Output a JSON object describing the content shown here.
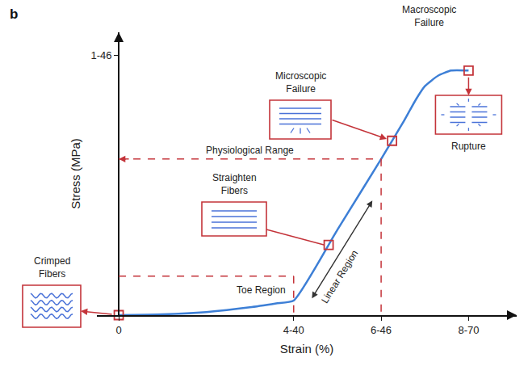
{
  "chart_data": {
    "type": "line",
    "panel_label": "b",
    "xlabel": "Strain (%)",
    "ylabel": "Stress (MPa)",
    "x": [
      0,
      1,
      2,
      3,
      3.6,
      4,
      5,
      6,
      6.25,
      6.5,
      6.8,
      7,
      7.3,
      7.6,
      8
    ],
    "values": [
      0,
      0.003,
      0.012,
      0.03,
      0.045,
      0.056,
      0.328,
      0.6,
      0.67,
      0.74,
      0.83,
      0.88,
      0.92,
      0.94,
      0.94
    ],
    "color": "#3d7fd6",
    "xlim": [
      -0.5,
      9.1
    ],
    "xticks": [
      0,
      {
        "value": 4,
        "label": "4-40"
      },
      {
        "value": 6,
        "label": "6-46"
      },
      {
        "value": 8,
        "label": "8-70"
      }
    ],
    "ylim": [
      0,
      1.087
    ],
    "yticks": [
      {
        "value": 1,
        "label": "1-46"
      }
    ],
    "grid": false,
    "callouts": [
      {
        "text": "Crimped Fibers",
        "x": 0,
        "y": 0
      },
      {
        "text": "Straighten Fibers",
        "x": 4.8,
        "y": 0.27
      },
      {
        "text": "Microscopic Failure",
        "x": 6.25,
        "y": 0.67
      },
      {
        "text": "Rupture",
        "x": 8,
        "y": 0.94
      }
    ],
    "ranges": [
      {
        "text": "Toe Region",
        "x": 4,
        "y": 0.15
      },
      {
        "text": "Physiological Range",
        "x": 6,
        "y": 0.6
      }
    ],
    "linear_region": {
      "text": "Linear Region",
      "x": [
        4.4,
        5.8
      ],
      "y": [
        0.06,
        0.44
      ]
    },
    "annotations": [
      {
        "text": "Macroscopic Failure",
        "x": 7.1
      }
    ]
  }
}
